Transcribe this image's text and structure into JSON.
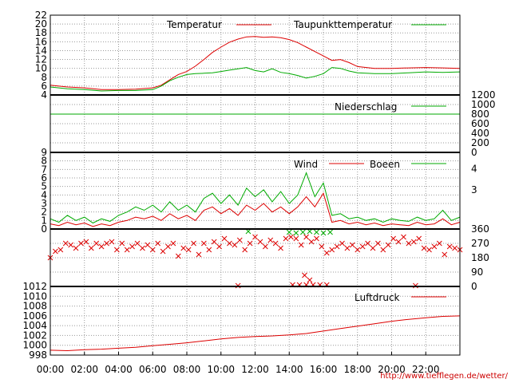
{
  "colors": {
    "red": "#dd0000",
    "green": "#00aa00",
    "grid": "#999999"
  },
  "source_url": "http://www.tiefflegen.de/wetter/",
  "x_axis": {
    "ticks": [
      "00:00",
      "02:00",
      "04:00",
      "06:00",
      "08:00",
      "10:00",
      "12:00",
      "14:00",
      "16:00",
      "18:00",
      "20:00",
      "22:00"
    ],
    "unit_hours": [
      0,
      2,
      4,
      6,
      8,
      10,
      12,
      14,
      16,
      18,
      20,
      22
    ],
    "range": [
      0,
      24
    ]
  },
  "chart_data": [
    {
      "id": "temp",
      "type": "line",
      "ylim": [
        4,
        22
      ],
      "yticks": [
        "22",
        "20",
        "18",
        "16",
        "14",
        "12",
        "10",
        "8",
        "6",
        "4"
      ],
      "ytick_values": [
        22,
        20,
        18,
        16,
        14,
        12,
        10,
        8,
        6,
        4
      ],
      "series": [
        {
          "name": "Temperatur",
          "color": "#dd0000",
          "x": [
            0,
            1,
            2,
            3,
            4,
            5,
            6,
            6.5,
            7,
            7.5,
            8,
            8.5,
            9,
            9.5,
            10,
            10.5,
            11,
            11.5,
            12,
            12.5,
            13,
            13.5,
            14,
            14.5,
            15,
            15.5,
            16,
            16.5,
            17,
            17.5,
            18,
            19,
            20,
            21,
            22,
            23,
            24
          ],
          "values": [
            6.2,
            5.8,
            5.6,
            5.2,
            5.2,
            5.3,
            5.6,
            6.2,
            7.4,
            8.6,
            9.3,
            10.5,
            12.0,
            13.6,
            14.8,
            15.9,
            16.6,
            17.1,
            17.2,
            17.0,
            17.1,
            16.9,
            16.5,
            15.8,
            14.8,
            13.8,
            12.8,
            11.8,
            12.0,
            11.3,
            10.4,
            10.0,
            10.0,
            10.1,
            10.2,
            10.1,
            10.0
          ]
        },
        {
          "name": "Taupunkttemperatur",
          "color": "#00aa00",
          "x": [
            0,
            1,
            2,
            3,
            4,
            5,
            6,
            6.5,
            7,
            7.5,
            8,
            8.5,
            9,
            9.5,
            10,
            10.5,
            11,
            11.5,
            12,
            12.5,
            13,
            13.5,
            14,
            14.5,
            15,
            15.5,
            16,
            16.5,
            17,
            17.5,
            18,
            19,
            20,
            21,
            22,
            23,
            24
          ],
          "values": [
            5.8,
            5.4,
            5.2,
            4.9,
            5.0,
            5.0,
            5.2,
            6.0,
            7.2,
            8.0,
            8.6,
            8.8,
            8.9,
            9.0,
            9.3,
            9.6,
            9.9,
            10.2,
            9.5,
            9.2,
            9.9,
            9.1,
            8.8,
            8.4,
            7.8,
            8.2,
            8.8,
            10.2,
            10.0,
            9.4,
            9.0,
            8.8,
            8.8,
            9.0,
            9.2,
            9.1,
            9.2
          ]
        }
      ]
    },
    {
      "id": "rain",
      "type": "line",
      "ylim": [
        0,
        1200
      ],
      "yticks": [
        "1200",
        "1000",
        "800",
        "600",
        "400",
        "200",
        "0"
      ],
      "ytick_values": [
        1200,
        1000,
        800,
        600,
        400,
        200,
        0
      ],
      "series": [
        {
          "name": "Niederschlag",
          "color": "#00aa00",
          "x": [
            0,
            24
          ],
          "values": [
            800,
            800
          ]
        }
      ]
    },
    {
      "id": "wind",
      "type": "line",
      "ylim": [
        0,
        9
      ],
      "yticks": [
        "9",
        "8",
        "7",
        "6",
        "5",
        "4",
        "3",
        "2",
        "1",
        "0"
      ],
      "ytick_values": [
        9,
        8,
        7,
        6,
        5,
        4,
        3,
        2,
        1,
        0
      ],
      "right_ticks": [
        "4",
        "3"
      ],
      "right_tick_values": [
        7.1,
        4.6
      ],
      "series": [
        {
          "name": "Wind",
          "color": "#dd0000",
          "x": [
            0,
            0.5,
            1,
            1.5,
            2,
            2.5,
            3,
            3.5,
            4,
            4.5,
            5,
            5.5,
            6,
            6.5,
            7,
            7.5,
            8,
            8.5,
            9,
            9.5,
            10,
            10.5,
            11,
            11.5,
            12,
            12.5,
            13,
            13.5,
            14,
            14.5,
            15,
            15.5,
            16,
            16.5,
            17,
            17.5,
            18,
            18.5,
            19,
            19.5,
            20,
            20.5,
            21,
            21.5,
            22,
            22.5,
            23,
            23.5,
            24
          ],
          "values": [
            0.6,
            0.4,
            0.8,
            0.5,
            0.7,
            0.3,
            0.6,
            0.4,
            0.8,
            1.0,
            1.4,
            1.2,
            1.5,
            1.0,
            1.8,
            1.2,
            1.6,
            1.0,
            2.2,
            2.6,
            1.8,
            2.4,
            1.6,
            2.8,
            2.2,
            3.0,
            2.0,
            2.6,
            1.8,
            2.6,
            3.8,
            2.6,
            4.2,
            0.8,
            1.0,
            0.6,
            0.8,
            0.5,
            0.7,
            0.4,
            0.6,
            0.5,
            0.4,
            0.8,
            0.5,
            0.6,
            1.2,
            0.5,
            0.8
          ]
        },
        {
          "name": "Boeen",
          "color": "#00aa00",
          "x": [
            0,
            0.5,
            1,
            1.5,
            2,
            2.5,
            3,
            3.5,
            4,
            4.5,
            5,
            5.5,
            6,
            6.5,
            7,
            7.5,
            8,
            8.5,
            9,
            9.5,
            10,
            10.5,
            11,
            11.5,
            12,
            12.5,
            13,
            13.5,
            14,
            14.5,
            15,
            15.5,
            16,
            16.5,
            17,
            17.5,
            18,
            18.5,
            19,
            19.5,
            20,
            20.5,
            21,
            21.5,
            22,
            22.5,
            23,
            23.5,
            24
          ],
          "values": [
            1.2,
            0.8,
            1.6,
            1.0,
            1.4,
            0.7,
            1.2,
            0.9,
            1.6,
            2.0,
            2.6,
            2.2,
            2.8,
            2.0,
            3.2,
            2.2,
            2.8,
            2.0,
            3.6,
            4.2,
            3.0,
            4.0,
            2.8,
            4.8,
            3.8,
            4.6,
            3.2,
            4.4,
            3.0,
            4.0,
            6.6,
            3.8,
            5.4,
            1.6,
            1.8,
            1.2,
            1.4,
            1.0,
            1.2,
            0.8,
            1.2,
            1.0,
            0.9,
            1.4,
            1.0,
            1.2,
            2.2,
            1.0,
            1.4
          ]
        }
      ]
    },
    {
      "id": "direction",
      "type": "scatter",
      "ylim": [
        0,
        360
      ],
      "yticks": [
        "360",
        "270",
        "180",
        "90",
        "0"
      ],
      "ytick_values": [
        360,
        270,
        180,
        90,
        0
      ],
      "series": [
        {
          "name": "",
          "color": "#dd0000",
          "x": [
            0,
            0.3,
            0.6,
            0.9,
            1.2,
            1.5,
            1.8,
            2.1,
            2.4,
            2.7,
            3,
            3.3,
            3.6,
            3.9,
            4.2,
            4.5,
            4.8,
            5.1,
            5.4,
            5.7,
            6,
            6.3,
            6.6,
            6.9,
            7.2,
            7.5,
            7.8,
            8.1,
            8.4,
            8.7,
            9,
            9.3,
            9.6,
            9.9,
            10.2,
            10.5,
            10.8,
            11.1,
            11.4,
            11.7,
            12,
            12.3,
            12.6,
            12.9,
            13.2,
            13.5,
            13.8,
            14.1,
            14.4,
            14.7,
            15,
            15.3,
            15.6,
            15.9,
            16.2,
            16.5,
            16.8,
            17.1,
            17.4,
            17.7,
            18,
            18.3,
            18.6,
            18.9,
            19.2,
            19.5,
            19.8,
            20.1,
            20.4,
            20.7,
            21,
            21.3,
            21.6,
            21.9,
            22.2,
            22.5,
            22.8,
            23.1,
            23.4,
            23.7,
            24,
            14.2,
            14.6,
            15.0,
            15.4,
            15.8,
            16.2,
            11.0,
            14.9,
            15.2,
            21.4
          ],
          "values": [
            180,
            220,
            230,
            270,
            260,
            240,
            270,
            280,
            240,
            270,
            250,
            270,
            280,
            230,
            270,
            230,
            250,
            270,
            240,
            260,
            230,
            270,
            220,
            250,
            270,
            190,
            240,
            230,
            270,
            200,
            270,
            230,
            280,
            250,
            300,
            270,
            260,
            290,
            230,
            270,
            310,
            280,
            250,
            290,
            270,
            240,
            300,
            310,
            300,
            260,
            310,
            280,
            300,
            250,
            210,
            230,
            250,
            270,
            240,
            260,
            230,
            250,
            270,
            240,
            270,
            230,
            260,
            300,
            280,
            310,
            270,
            280,
            300,
            240,
            230,
            250,
            270,
            200,
            250,
            240,
            230,
            10,
            10,
            10,
            10,
            10,
            10,
            5,
            70,
            40,
            5
          ]
        },
        {
          "name": "",
          "color": "#00aa00",
          "x": [
            14.0,
            14.4,
            14.8,
            15.2,
            15.6,
            16.0,
            16.4,
            11.6
          ],
          "values": [
            340,
            335,
            340,
            345,
            340,
            335,
            340,
            345
          ]
        }
      ]
    },
    {
      "id": "pressure",
      "type": "line",
      "ylim": [
        998,
        1012
      ],
      "yticks": [
        "1012",
        "1010",
        "1008",
        "1006",
        "1004",
        "1002",
        "1000",
        "998"
      ],
      "ytick_values": [
        1012,
        1010,
        1008,
        1006,
        1004,
        1002,
        1000,
        998
      ],
      "series": [
        {
          "name": "Luftdruck",
          "color": "#dd0000",
          "x": [
            0,
            1,
            2,
            3,
            4,
            5,
            6,
            7,
            8,
            9,
            10,
            11,
            12,
            13,
            14,
            15,
            16,
            17,
            18,
            19,
            20,
            21,
            22,
            23,
            24
          ],
          "values": [
            999.0,
            998.9,
            999.1,
            999.2,
            999.4,
            999.6,
            999.9,
            1000.2,
            1000.5,
            1000.9,
            1001.3,
            1001.6,
            1001.8,
            1001.9,
            1002.1,
            1002.4,
            1002.9,
            1003.4,
            1003.9,
            1004.4,
            1004.9,
            1005.3,
            1005.6,
            1005.9,
            1006.0
          ]
        }
      ]
    }
  ]
}
